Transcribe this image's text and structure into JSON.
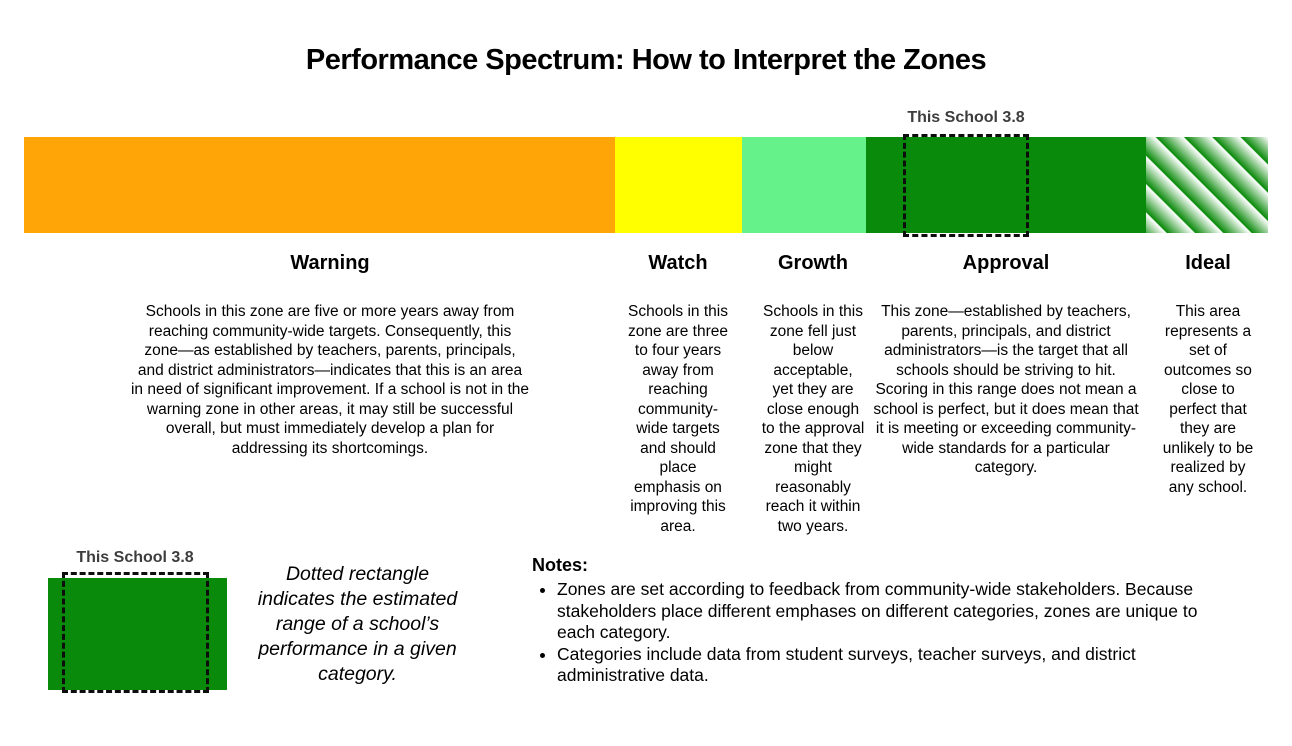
{
  "title": "Performance Spectrum: How to Interpret the Zones",
  "bar": {
    "marker_label": "This School 3.8",
    "marker_style": "dashed-rectangle"
  },
  "zones": [
    {
      "name": "Warning",
      "color": "#FFA507",
      "description": "Schools in this zone are five or more years away from reaching community-wide targets. Consequently, this zone—as established by teachers, parents, principals, and district administrators—indicates that this is an area in need of significant improvement. If a school is not in the warning zone in other areas, it may still be successful overall, but must immediately develop a plan for addressing its shortcomings."
    },
    {
      "name": "Watch",
      "color": "#FFFF00",
      "description": "Schools in this zone are three to four years away from reaching community-wide targets and should place emphasis on improving this area."
    },
    {
      "name": "Growth",
      "color": "#66F28B",
      "description": "Schools in this zone fell just below acceptable, yet they are close enough to the approval zone that they might reasonably reach it within two years."
    },
    {
      "name": "Approval",
      "color": "#0A8A0A",
      "description": "This zone—established by teachers, parents, principals, and district administrators—is the target that all schools should be striving to hit. Scoring in this range does not mean a school is perfect, but it does mean that it is meeting or exceeding community-wide standards for a particular category."
    },
    {
      "name": "Ideal",
      "color": "#0A8A0A",
      "pattern": "diagonal-green-white-stripes",
      "description": "This area represents a set of outcomes so close to perfect that they are unlikely to be realized by any school."
    }
  ],
  "legend": {
    "marker_label": "This School 3.8",
    "swatch_color": "#0A8A0A",
    "caption": "Dotted rectangle indicates the estimated range of a school’s performance in a given category."
  },
  "notes": {
    "heading": "Notes:",
    "items": [
      "Zones are set according to feedback from community-wide stakeholders. Because stakeholders place different emphases on different categories, zones are unique to each category.",
      "Categories include data from student surveys, teacher surveys, and district administrative data."
    ]
  }
}
